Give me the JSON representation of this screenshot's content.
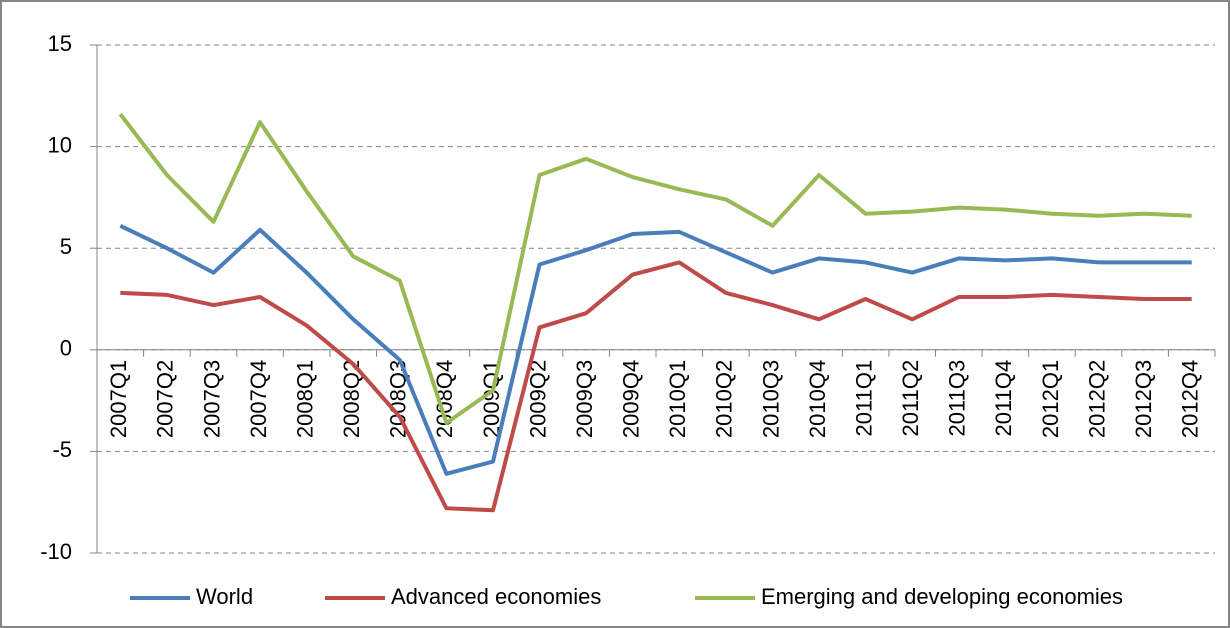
{
  "chart_data": {
    "type": "line",
    "categories": [
      "2007Q1",
      "2007Q2",
      "2007Q3",
      "2007Q4",
      "2008Q1",
      "2008Q2",
      "2008Q3",
      "2008Q4",
      "2009Q1",
      "2009Q2",
      "2009Q3",
      "2009Q4",
      "2010Q1",
      "2010Q2",
      "2010Q3",
      "2010Q4",
      "2011Q1",
      "2011Q2",
      "2011Q3",
      "2011Q4",
      "2012Q1",
      "2012Q2",
      "2012Q3",
      "2012Q4"
    ],
    "series": [
      {
        "name": "World",
        "color": "#4a7ebb",
        "values": [
          6.1,
          5.0,
          3.8,
          5.9,
          3.8,
          1.5,
          -0.5,
          -6.1,
          -5.5,
          4.2,
          4.9,
          5.7,
          5.8,
          4.8,
          3.8,
          4.5,
          4.3,
          3.8,
          4.5,
          4.4,
          4.5,
          4.3,
          4.3,
          4.3
        ]
      },
      {
        "name": "Advanced economies",
        "color": "#be4b48",
        "values": [
          2.8,
          2.7,
          2.2,
          2.6,
          1.2,
          -0.7,
          -3.3,
          -7.8,
          -7.9,
          1.1,
          1.8,
          3.7,
          4.3,
          2.8,
          2.2,
          1.5,
          2.5,
          1.5,
          2.6,
          2.6,
          2.7,
          2.6,
          2.5,
          2.5
        ]
      },
      {
        "name": "Emerging and developing economies",
        "color": "#98b954",
        "values": [
          11.6,
          8.6,
          6.3,
          11.2,
          7.8,
          4.6,
          3.4,
          -3.6,
          -2.0,
          8.6,
          9.4,
          8.5,
          7.9,
          7.4,
          6.1,
          8.6,
          6.7,
          6.8,
          7.0,
          6.9,
          6.7,
          6.6,
          6.7,
          6.6
        ]
      }
    ],
    "ylim": [
      -10,
      15
    ],
    "yticks": [
      -10,
      -5,
      0,
      5,
      10,
      15
    ],
    "grid": true,
    "legend": "bottom"
  }
}
